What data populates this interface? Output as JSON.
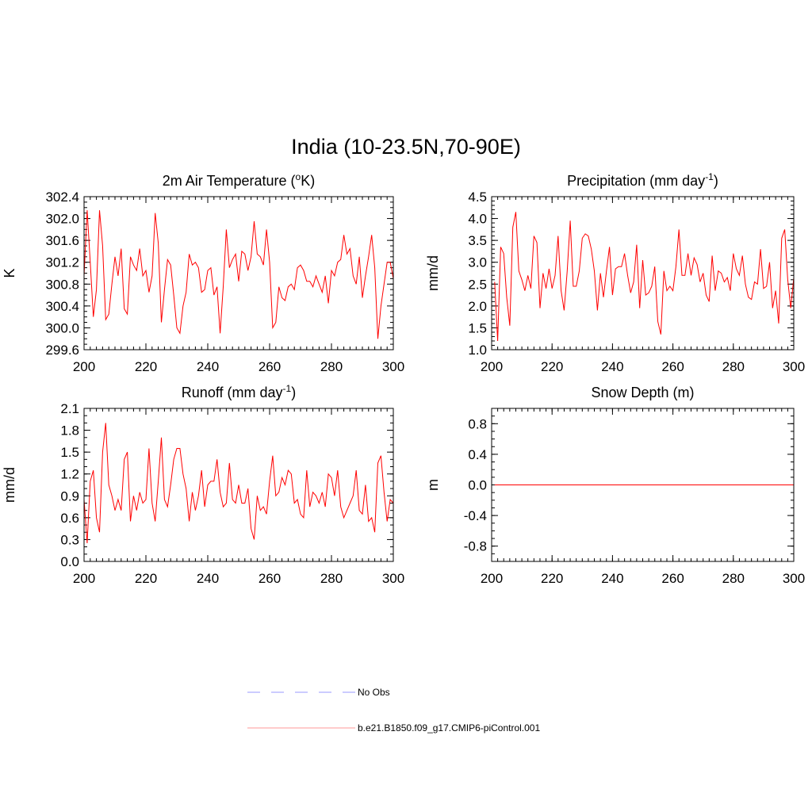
{
  "figure_title": "India (10-23.5N,70-90E)",
  "legend": [
    {
      "label": "No Obs",
      "color": "#9999ff",
      "dash": "dashed"
    },
    {
      "label": "b.e21.B1850.f09_g17.CMIP6-piControl.001",
      "color": "#ff9999",
      "dash": "solid"
    }
  ],
  "chart_data": [
    {
      "type": "line",
      "title": "2m Air Temperature (",
      "title_sup": "o",
      "title_after": "K)",
      "ylabel": "K",
      "xlabel": "",
      "xlim": [
        200,
        300
      ],
      "ylim": [
        299.6,
        302.4
      ],
      "xticks": [
        200,
        220,
        240,
        260,
        280,
        300
      ],
      "yticks": [
        "299.6",
        "300.0",
        "300.4",
        "300.8",
        "301.2",
        "301.6",
        "302.0",
        "302.4"
      ],
      "ytick_values": [
        299.6,
        300.0,
        300.4,
        300.8,
        301.2,
        301.6,
        302.0,
        302.4
      ],
      "yminor": 0.1,
      "x_start": 200,
      "series": [
        {
          "name": "b.e21.B1850.f09_g17.CMIP6-piControl.001",
          "color": "#ff0000",
          "values": [
            300.95,
            302.15,
            301.2,
            300.2,
            300.7,
            302.15,
            301.5,
            300.15,
            300.25,
            300.8,
            301.3,
            300.95,
            301.45,
            300.35,
            300.25,
            301.3,
            301.15,
            301.05,
            301.45,
            300.95,
            301.05,
            300.65,
            300.95,
            302.1,
            301.55,
            300.1,
            300.7,
            301.25,
            301.15,
            300.6,
            300.0,
            299.9,
            300.4,
            300.65,
            301.35,
            301.15,
            301.2,
            301.1,
            300.65,
            300.7,
            301.05,
            301.1,
            300.6,
            300.75,
            299.9,
            300.75,
            301.8,
            301.1,
            301.25,
            301.35,
            300.85,
            301.4,
            301.35,
            301.05,
            301.3,
            301.95,
            301.35,
            301.3,
            301.15,
            301.8,
            301.2,
            300.0,
            300.1,
            300.75,
            300.55,
            300.5,
            300.75,
            300.8,
            300.7,
            301.1,
            301.15,
            301.05,
            300.85,
            300.85,
            300.75,
            300.95,
            300.8,
            300.65,
            300.95,
            300.45,
            301.05,
            300.95,
            301.2,
            301.25,
            301.7,
            301.35,
            301.45,
            300.95,
            300.8,
            301.3,
            300.55,
            300.95,
            301.3,
            301.7,
            301.1,
            299.8,
            300.4,
            300.8,
            301.2,
            301.2,
            300.9
          ]
        }
      ]
    },
    {
      "type": "line",
      "title": "Precipitation (mm day",
      "title_sup": "-1",
      "title_after": ")",
      "ylabel": "mm/d",
      "xlabel": "",
      "xlim": [
        200,
        300
      ],
      "ylim": [
        1.0,
        4.5
      ],
      "xticks": [
        200,
        220,
        240,
        260,
        280,
        300
      ],
      "yticks": [
        "1.0",
        "1.5",
        "2.0",
        "2.5",
        "3.0",
        "3.5",
        "4.0",
        "4.5"
      ],
      "ytick_values": [
        1.0,
        1.5,
        2.0,
        2.5,
        3.0,
        3.5,
        4.0,
        4.5
      ],
      "yminor": 0.1,
      "x_start": 201,
      "series": [
        {
          "name": "b.e21.B1850.f09_g17.CMIP6-piControl.001",
          "color": "#ff0000",
          "values": [
            2.55,
            1.2,
            3.35,
            3.2,
            2.2,
            1.55,
            3.8,
            4.15,
            2.8,
            2.6,
            2.35,
            2.7,
            2.4,
            3.6,
            3.45,
            1.95,
            2.75,
            2.4,
            2.85,
            2.4,
            2.7,
            3.6,
            2.35,
            1.9,
            2.8,
            3.95,
            2.45,
            2.45,
            2.8,
            3.55,
            3.65,
            3.6,
            3.3,
            2.8,
            1.9,
            2.75,
            2.2,
            2.8,
            3.35,
            2.25,
            2.85,
            2.9,
            2.9,
            3.2,
            2.7,
            2.3,
            2.55,
            3.4,
            1.95,
            3.05,
            2.25,
            2.3,
            2.45,
            2.9,
            1.65,
            1.35,
            2.8,
            2.35,
            2.45,
            2.35,
            2.9,
            3.75,
            2.7,
            2.7,
            3.2,
            2.7,
            3.1,
            2.95,
            2.55,
            2.75,
            2.25,
            2.1,
            3.15,
            2.35,
            2.8,
            2.75,
            2.55,
            2.65,
            2.35,
            3.2,
            2.85,
            2.7,
            3.15,
            2.5,
            2.2,
            2.15,
            2.55,
            2.5,
            3.3,
            2.4,
            2.45,
            3.0,
            1.95,
            2.35,
            1.6,
            3.55,
            3.75,
            2.6,
            1.95,
            2.65,
            2.5
          ]
        }
      ]
    },
    {
      "type": "line",
      "title": "Runoff (mm day",
      "title_sup": "-1",
      "title_after": ")",
      "ylabel": "mm/d",
      "xlabel": "",
      "xlim": [
        200,
        300
      ],
      "ylim": [
        0.0,
        2.1
      ],
      "xticks": [
        200,
        220,
        240,
        260,
        280,
        300
      ],
      "yticks": [
        "0.0",
        "0.3",
        "0.6",
        "0.9",
        "1.2",
        "1.5",
        "1.8",
        "2.1"
      ],
      "ytick_values": [
        0.0,
        0.3,
        0.6,
        0.9,
        1.2,
        1.5,
        1.8,
        2.1
      ],
      "yminor": 0.1,
      "x_start": 200,
      "series": [
        {
          "name": "b.e21.B1850.f09_g17.CMIP6-piControl.001",
          "color": "#ff0000",
          "values": [
            0.85,
            0.25,
            1.1,
            1.25,
            0.6,
            0.4,
            1.5,
            1.9,
            1.05,
            0.9,
            0.7,
            0.85,
            0.7,
            1.4,
            1.5,
            0.55,
            0.9,
            0.7,
            0.95,
            0.8,
            0.85,
            1.55,
            0.8,
            0.55,
            1.1,
            1.7,
            0.85,
            0.75,
            1.05,
            1.4,
            1.55,
            1.55,
            1.2,
            1.0,
            0.55,
            0.95,
            0.7,
            0.9,
            1.25,
            0.75,
            1.05,
            1.1,
            1.1,
            1.4,
            0.95,
            0.75,
            0.8,
            1.35,
            0.85,
            0.8,
            1.05,
            0.8,
            0.8,
            1.0,
            0.45,
            0.3,
            0.9,
            0.7,
            0.75,
            0.65,
            1.1,
            1.45,
            0.9,
            0.95,
            1.15,
            1.05,
            1.25,
            1.2,
            0.8,
            0.85,
            0.65,
            0.6,
            1.25,
            0.75,
            0.95,
            0.9,
            0.8,
            0.95,
            0.75,
            1.2,
            1.15,
            0.9,
            1.25,
            0.75,
            0.6,
            0.7,
            0.8,
            0.9,
            1.25,
            0.7,
            0.65,
            1.05,
            0.55,
            0.6,
            0.4,
            1.35,
            1.45,
            0.95,
            0.55,
            0.85,
            0.8
          ]
        }
      ]
    },
    {
      "type": "line",
      "title": "Snow Depth (m)",
      "title_sup": "",
      "title_after": "",
      "ylabel": "m",
      "xlabel": "",
      "xlim": [
        200,
        300
      ],
      "ylim": [
        -1.0,
        1.0
      ],
      "xticks": [
        200,
        220,
        240,
        260,
        280,
        300
      ],
      "yticks": [
        "-0.8",
        "-0.4",
        "0.0",
        "0.4",
        "0.8"
      ],
      "ytick_values": [
        -0.8,
        -0.4,
        0.0,
        0.4,
        0.8
      ],
      "yminor": 0.1,
      "x_start": 201,
      "series": [
        {
          "name": "b.e21.B1850.f09_g17.CMIP6-piControl.001",
          "color": "#ff0000",
          "values": [
            0,
            0,
            0,
            0,
            0,
            0,
            0,
            0,
            0,
            0,
            0,
            0,
            0,
            0,
            0,
            0,
            0,
            0,
            0,
            0,
            0,
            0,
            0,
            0,
            0,
            0,
            0,
            0,
            0,
            0,
            0,
            0,
            0,
            0,
            0,
            0,
            0,
            0,
            0,
            0,
            0,
            0,
            0,
            0,
            0,
            0,
            0,
            0,
            0,
            0,
            0,
            0,
            0,
            0,
            0,
            0,
            0,
            0,
            0,
            0,
            0,
            0,
            0,
            0,
            0,
            0,
            0,
            0,
            0,
            0,
            0,
            0,
            0,
            0,
            0,
            0,
            0,
            0,
            0,
            0,
            0,
            0,
            0,
            0,
            0,
            0,
            0,
            0,
            0,
            0,
            0,
            0,
            0,
            0,
            0,
            0,
            0,
            0,
            0,
            0
          ]
        }
      ]
    }
  ]
}
